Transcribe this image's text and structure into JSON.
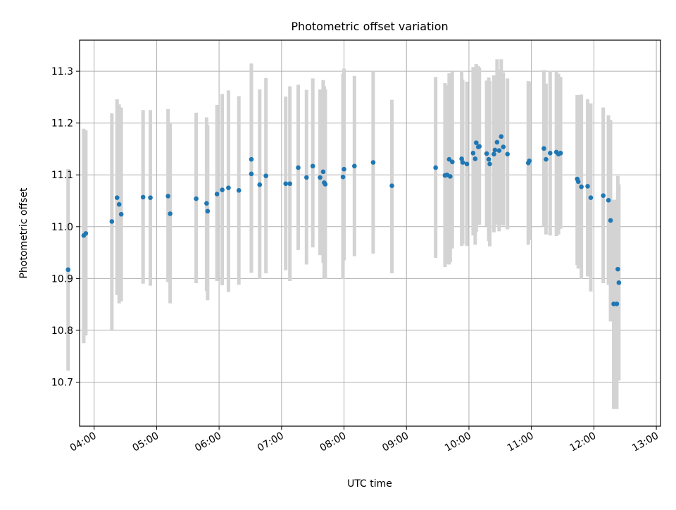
{
  "chart_data": {
    "type": "scatter",
    "title": "Photometric offset variation",
    "xlabel": "UTC time",
    "ylabel": "Photometric offset",
    "x_unit": "UTC hours",
    "xlim": [
      "03:46",
      "13:04"
    ],
    "ylim": [
      10.615,
      11.36
    ],
    "x_ticks": [
      "04:00",
      "05:00",
      "06:00",
      "07:00",
      "08:00",
      "09:00",
      "10:00",
      "11:00",
      "12:00",
      "13:00"
    ],
    "y_ticks": [
      "10.7",
      "10.8",
      "10.9",
      "11.0",
      "11.1",
      "11.2",
      "11.3"
    ],
    "grid": true,
    "point_color": "#1f77b4",
    "errorbar_color": "#d3d3d3",
    "series": [
      {
        "x": [
          "03:35",
          "03:50",
          "03:52",
          "04:17",
          "04:22",
          "04:24",
          "04:26",
          "04:47",
          "04:54",
          "05:11",
          "05:13",
          "05:38",
          "05:48",
          "05:49",
          "05:58",
          "06:03",
          "06:09",
          "06:19",
          "06:31",
          "06:31",
          "06:39",
          "06:45",
          "07:04",
          "07:08",
          "07:16",
          "07:24",
          "07:30",
          "07:37",
          "07:40",
          "07:41",
          "07:42",
          "07:59",
          "08:00",
          "08:10",
          "08:28",
          "08:46",
          "09:28",
          "09:37",
          "09:39",
          "09:41",
          "09:42",
          "09:44",
          "09:53",
          "09:54",
          "09:58",
          "10:04",
          "10:06",
          "10:07",
          "10:09",
          "10:10",
          "10:17",
          "10:19",
          "10:20",
          "10:24",
          "10:25",
          "10:27",
          "10:29",
          "10:31",
          "10:33",
          "10:37",
          "10:57",
          "10:58",
          "11:12",
          "11:14",
          "11:18",
          "11:24",
          "11:26",
          "11:28",
          "11:44",
          "11:45",
          "11:48",
          "11:54",
          "11:57",
          "12:09",
          "12:14",
          "12:16",
          "12:19"
        ],
        "y": [
          10.917,
          10.983,
          10.987,
          11.01,
          11.056,
          11.043,
          11.024,
          11.057,
          11.056,
          11.059,
          11.025,
          11.054,
          11.045,
          11.03,
          11.063,
          11.071,
          11.075,
          11.07,
          11.13,
          11.102,
          11.081,
          11.098,
          11.083,
          11.083,
          11.114,
          11.095,
          11.117,
          11.095,
          11.106,
          11.085,
          11.082,
          11.096,
          11.111,
          11.117,
          11.124,
          11.079,
          11.114,
          11.099,
          11.1,
          11.13,
          11.097,
          11.125,
          11.131,
          11.124,
          11.121,
          11.142,
          11.131,
          11.162,
          11.154,
          11.155,
          11.141,
          11.13,
          11.121,
          11.14,
          11.148,
          11.163,
          11.147,
          11.174,
          11.154,
          11.14,
          11.123,
          11.127,
          11.151,
          11.13,
          11.142,
          11.144,
          11.14,
          11.142,
          11.092,
          11.087,
          11.077,
          11.078,
          11.056,
          11.06,
          11.051,
          11.012,
          10.851
        ],
        "yerr_low": [
          10.722,
          10.775,
          10.79,
          10.8,
          10.868,
          10.852,
          10.856,
          10.89,
          10.886,
          10.893,
          10.852,
          10.891,
          10.876,
          10.858,
          10.895,
          10.887,
          10.874,
          10.888,
          10.911,
          10.913,
          10.899,
          10.91,
          10.916,
          10.895,
          10.955,
          10.927,
          10.96,
          10.945,
          10.93,
          10.9,
          10.899,
          10.899,
          10.935,
          10.943,
          10.948,
          10.91,
          10.94,
          10.922,
          10.928,
          10.927,
          10.932,
          10.958,
          10.963,
          10.966,
          10.963,
          10.983,
          10.965,
          10.99,
          11.003,
          11.004,
          11.001,
          10.972,
          10.962,
          10.989,
          11.006,
          11.003,
          10.991,
          11.004,
          11.002,
          10.995,
          10.965,
          10.974,
          11.0,
          10.985,
          10.983,
          10.982,
          10.985,
          10.996,
          10.926,
          10.919,
          10.899,
          10.904,
          10.875,
          10.891,
          10.888,
          10.817,
          10.648
        ],
        "yerr_high": [
          11.111,
          11.189,
          11.186,
          11.219,
          11.246,
          11.236,
          11.23,
          11.225,
          11.225,
          11.227,
          11.2,
          11.22,
          11.211,
          11.196,
          11.235,
          11.256,
          11.263,
          11.252,
          11.315,
          11.291,
          11.265,
          11.287,
          11.251,
          11.271,
          11.274,
          11.264,
          11.286,
          11.265,
          11.283,
          11.271,
          11.265,
          11.295,
          11.305,
          11.291,
          11.3,
          11.245,
          11.289,
          11.277,
          11.273,
          11.296,
          11.281,
          11.299,
          11.301,
          11.284,
          11.28,
          11.308,
          11.305,
          11.314,
          11.31,
          11.307,
          11.282,
          11.288,
          11.281,
          11.292,
          11.291,
          11.323,
          11.303,
          11.323,
          11.298,
          11.286,
          11.281,
          11.28,
          11.302,
          11.276,
          11.301,
          11.3,
          11.295,
          11.289,
          11.254,
          11.254,
          11.255,
          11.246,
          11.238,
          11.23,
          11.215,
          11.206,
          11.052
        ]
      },
      {
        "x": [
          "12:22",
          "12:23",
          "12:24"
        ],
        "y": [
          10.851,
          10.918,
          10.892
        ],
        "yerr_low": [
          10.648,
          10.738,
          10.703
        ],
        "yerr_high": [
          11.052,
          11.098,
          11.082
        ]
      }
    ]
  }
}
